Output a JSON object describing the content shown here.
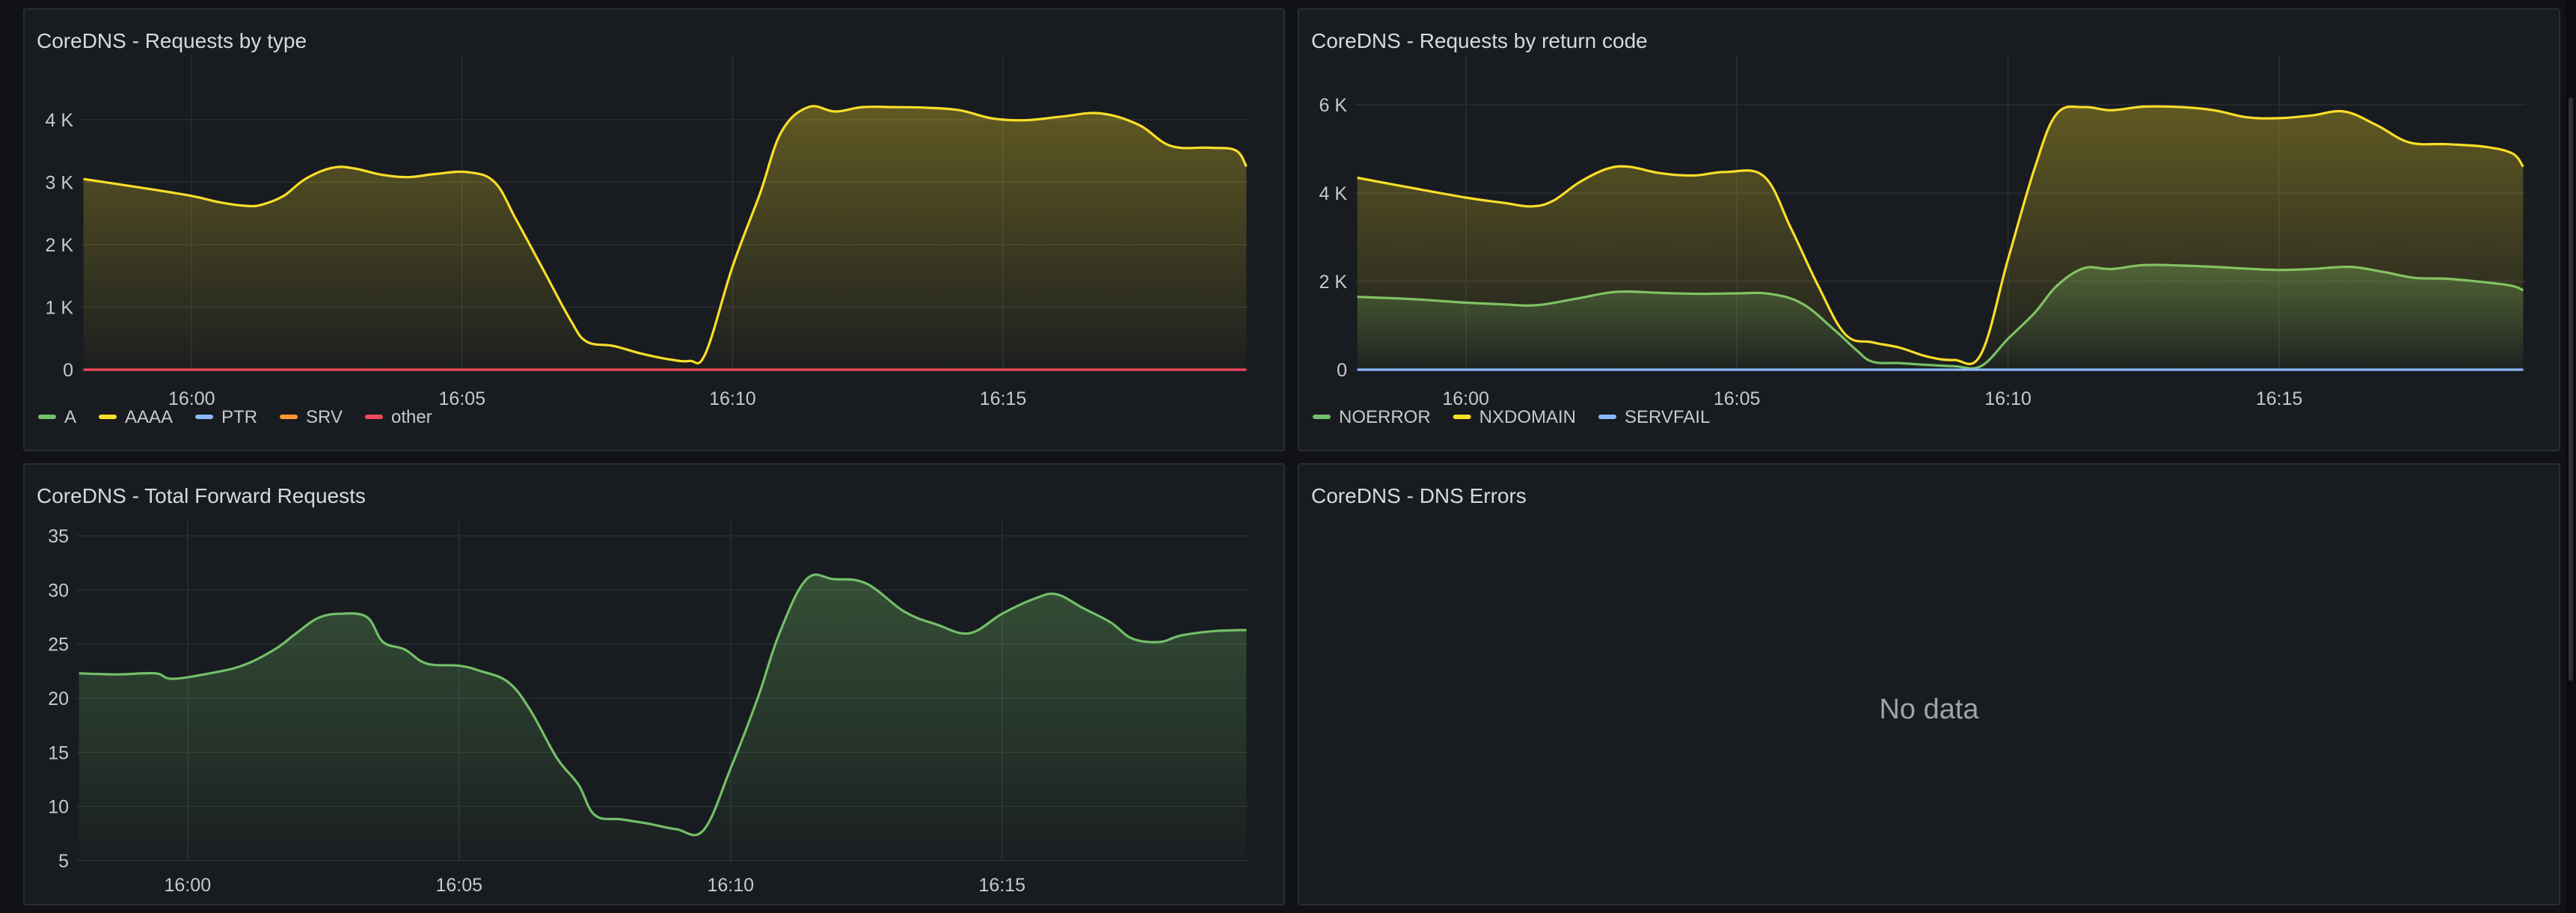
{
  "panels": {
    "requests_by_type": {
      "title": "CoreDNS - Requests by type"
    },
    "requests_by_rcode": {
      "title": "CoreDNS - Requests by return code"
    },
    "forward_requests": {
      "title": "CoreDNS - Total Forward Requests"
    },
    "dns_errors": {
      "title": "CoreDNS - DNS Errors",
      "empty_text": "No data"
    }
  },
  "chart_data": [
    {
      "id": "requests_by_type",
      "type": "area",
      "title": "CoreDNS - Requests by type",
      "x_ticks": [
        "16:00",
        "16:05",
        "16:10",
        "16:15"
      ],
      "x_tick_positions": [
        0.0,
        5.0,
        10.0,
        15.0
      ],
      "xlim": [
        -2.05,
        19.55
      ],
      "y_ticks": [
        0,
        1000,
        2000,
        3000,
        4000
      ],
      "y_tick_labels": [
        "0",
        "1 K",
        "2 K",
        "3 K",
        "4 K"
      ],
      "ylim": [
        0,
        4800
      ],
      "legend_placement": "bottom-left",
      "grid": true,
      "series": [
        {
          "name": "A",
          "color": "#73bf69",
          "fill": false,
          "points": []
        },
        {
          "name": "AAAA",
          "color": "#fade2a",
          "fill": true,
          "points": [
            [
              -2.0,
              3050
            ],
            [
              -1.0,
              2920
            ],
            [
              0.0,
              2780
            ],
            [
              0.5,
              2680
            ],
            [
              1.0,
              2620
            ],
            [
              1.3,
              2640
            ],
            [
              1.7,
              2780
            ],
            [
              2.1,
              3050
            ],
            [
              2.6,
              3230
            ],
            [
              3.0,
              3220
            ],
            [
              3.5,
              3120
            ],
            [
              4.0,
              3080
            ],
            [
              4.5,
              3130
            ],
            [
              5.1,
              3160
            ],
            [
              5.6,
              3000
            ],
            [
              6.0,
              2400
            ],
            [
              6.5,
              1600
            ],
            [
              7.0,
              800
            ],
            [
              7.3,
              450
            ],
            [
              7.8,
              380
            ],
            [
              8.3,
              260
            ],
            [
              8.8,
              170
            ],
            [
              9.2,
              140
            ],
            [
              9.5,
              260
            ],
            [
              10.0,
              1650
            ],
            [
              10.5,
              2800
            ],
            [
              10.9,
              3800
            ],
            [
              11.4,
              4200
            ],
            [
              11.9,
              4130
            ],
            [
              12.4,
              4200
            ],
            [
              13.0,
              4200
            ],
            [
              13.6,
              4190
            ],
            [
              14.2,
              4150
            ],
            [
              14.8,
              4020
            ],
            [
              15.4,
              3990
            ],
            [
              16.1,
              4050
            ],
            [
              16.8,
              4100
            ],
            [
              17.5,
              3920
            ],
            [
              18.1,
              3580
            ],
            [
              18.8,
              3550
            ],
            [
              19.3,
              3510
            ],
            [
              19.5,
              3250
            ]
          ]
        },
        {
          "name": "PTR",
          "color": "#8ab8ff",
          "fill": false,
          "points": []
        },
        {
          "name": "SRV",
          "color": "#ff9830",
          "fill": false,
          "points": []
        },
        {
          "name": "other",
          "color": "#f2495c",
          "fill": false,
          "points": [
            [
              -2.0,
              0
            ],
            [
              19.5,
              0
            ]
          ]
        }
      ]
    },
    {
      "id": "requests_by_rcode",
      "type": "area",
      "title": "CoreDNS - Requests by return code",
      "x_ticks": [
        "16:00",
        "16:05",
        "16:10",
        "16:15"
      ],
      "x_tick_positions": [
        0.0,
        5.0,
        10.0,
        15.0
      ],
      "xlim": [
        -2.05,
        19.55
      ],
      "y_ticks": [
        0,
        2000,
        4000,
        6000
      ],
      "y_tick_labels": [
        "0",
        "2 K",
        "4 K",
        "6 K"
      ],
      "ylim": [
        0,
        6800
      ],
      "legend_placement": "bottom-left",
      "grid": true,
      "series": [
        {
          "name": "NOERROR",
          "color": "#73bf69",
          "fill": true,
          "points": [
            [
              -2.0,
              1650
            ],
            [
              -1.0,
              1600
            ],
            [
              0.0,
              1520
            ],
            [
              0.7,
              1480
            ],
            [
              1.3,
              1460
            ],
            [
              2.0,
              1600
            ],
            [
              2.6,
              1740
            ],
            [
              3.0,
              1770
            ],
            [
              3.6,
              1740
            ],
            [
              4.3,
              1720
            ],
            [
              5.0,
              1730
            ],
            [
              5.6,
              1720
            ],
            [
              6.2,
              1500
            ],
            [
              6.8,
              900
            ],
            [
              7.2,
              450
            ],
            [
              7.5,
              180
            ],
            [
              8.0,
              150
            ],
            [
              8.5,
              110
            ],
            [
              9.0,
              80
            ],
            [
              9.5,
              80
            ],
            [
              10.0,
              700
            ],
            [
              10.5,
              1300
            ],
            [
              10.9,
              1900
            ],
            [
              11.4,
              2300
            ],
            [
              11.9,
              2280
            ],
            [
              12.5,
              2370
            ],
            [
              13.2,
              2360
            ],
            [
              13.8,
              2330
            ],
            [
              14.4,
              2290
            ],
            [
              15.0,
              2260
            ],
            [
              15.6,
              2280
            ],
            [
              16.3,
              2330
            ],
            [
              16.9,
              2220
            ],
            [
              17.5,
              2080
            ],
            [
              18.1,
              2060
            ],
            [
              18.8,
              1980
            ],
            [
              19.3,
              1900
            ],
            [
              19.5,
              1800
            ]
          ]
        },
        {
          "name": "NXDOMAIN",
          "color": "#fade2a",
          "fill": true,
          "points": [
            [
              -2.0,
              4350
            ],
            [
              -1.0,
              4120
            ],
            [
              0.0,
              3900
            ],
            [
              0.7,
              3780
            ],
            [
              1.2,
              3700
            ],
            [
              1.6,
              3820
            ],
            [
              2.1,
              4250
            ],
            [
              2.6,
              4550
            ],
            [
              3.0,
              4600
            ],
            [
              3.6,
              4450
            ],
            [
              4.2,
              4400
            ],
            [
              4.8,
              4480
            ],
            [
              5.5,
              4380
            ],
            [
              6.0,
              3200
            ],
            [
              6.5,
              1900
            ],
            [
              7.0,
              800
            ],
            [
              7.5,
              620
            ],
            [
              8.0,
              500
            ],
            [
              8.5,
              300
            ],
            [
              9.0,
              220
            ],
            [
              9.5,
              350
            ],
            [
              10.0,
              2500
            ],
            [
              10.5,
              4600
            ],
            [
              10.9,
              5800
            ],
            [
              11.4,
              5950
            ],
            [
              11.9,
              5880
            ],
            [
              12.5,
              5960
            ],
            [
              13.2,
              5950
            ],
            [
              13.8,
              5880
            ],
            [
              14.4,
              5720
            ],
            [
              15.0,
              5700
            ],
            [
              15.6,
              5760
            ],
            [
              16.2,
              5850
            ],
            [
              16.8,
              5540
            ],
            [
              17.4,
              5150
            ],
            [
              18.1,
              5110
            ],
            [
              18.8,
              5050
            ],
            [
              19.3,
              4900
            ],
            [
              19.5,
              4600
            ]
          ]
        },
        {
          "name": "SERVFAIL",
          "color": "#8ab8ff",
          "fill": false,
          "points": [
            [
              -2.0,
              0
            ],
            [
              19.5,
              0
            ]
          ]
        }
      ]
    },
    {
      "id": "forward_requests",
      "type": "area",
      "title": "CoreDNS - Total Forward Requests",
      "x_ticks": [
        "16:00",
        "16:05",
        "16:10",
        "16:15"
      ],
      "x_tick_positions": [
        0.0,
        5.0,
        10.0,
        15.0
      ],
      "xlim": [
        -2.05,
        19.55
      ],
      "y_ticks": [
        5,
        10,
        15,
        20,
        25,
        30,
        35
      ],
      "y_tick_labels": [
        "5",
        "10",
        "15",
        "20",
        "25",
        "30",
        "35"
      ],
      "ylim": [
        5,
        35
      ],
      "grid": true,
      "series": [
        {
          "name": "",
          "color": "#73bf69",
          "fill": true,
          "points": [
            [
              -2.0,
              22.3
            ],
            [
              -1.3,
              22.2
            ],
            [
              -0.6,
              22.3
            ],
            [
              -0.3,
              21.8
            ],
            [
              0.3,
              22.2
            ],
            [
              1.0,
              23.0
            ],
            [
              1.6,
              24.5
            ],
            [
              2.0,
              26.0
            ],
            [
              2.4,
              27.4
            ],
            [
              2.8,
              27.8
            ],
            [
              3.3,
              27.5
            ],
            [
              3.6,
              25.2
            ],
            [
              4.0,
              24.5
            ],
            [
              4.4,
              23.2
            ],
            [
              5.0,
              23.0
            ],
            [
              5.4,
              22.5
            ],
            [
              5.9,
              21.5
            ],
            [
              6.3,
              19.0
            ],
            [
              6.8,
              14.5
            ],
            [
              7.2,
              12.0
            ],
            [
              7.5,
              9.2
            ],
            [
              8.0,
              8.8
            ],
            [
              8.5,
              8.4
            ],
            [
              9.0,
              7.9
            ],
            [
              9.5,
              7.8
            ],
            [
              10.0,
              13.5
            ],
            [
              10.5,
              20.0
            ],
            [
              10.9,
              26.0
            ],
            [
              11.4,
              31.0
            ],
            [
              11.9,
              31.0
            ],
            [
              12.5,
              30.6
            ],
            [
              13.2,
              28.0
            ],
            [
              13.8,
              26.8
            ],
            [
              14.4,
              26.0
            ],
            [
              15.0,
              27.8
            ],
            [
              15.6,
              29.2
            ],
            [
              16.0,
              29.6
            ],
            [
              16.5,
              28.3
            ],
            [
              17.0,
              27.0
            ],
            [
              17.4,
              25.5
            ],
            [
              17.9,
              25.2
            ],
            [
              18.3,
              25.8
            ],
            [
              18.9,
              26.2
            ],
            [
              19.5,
              26.3
            ]
          ]
        }
      ]
    }
  ]
}
